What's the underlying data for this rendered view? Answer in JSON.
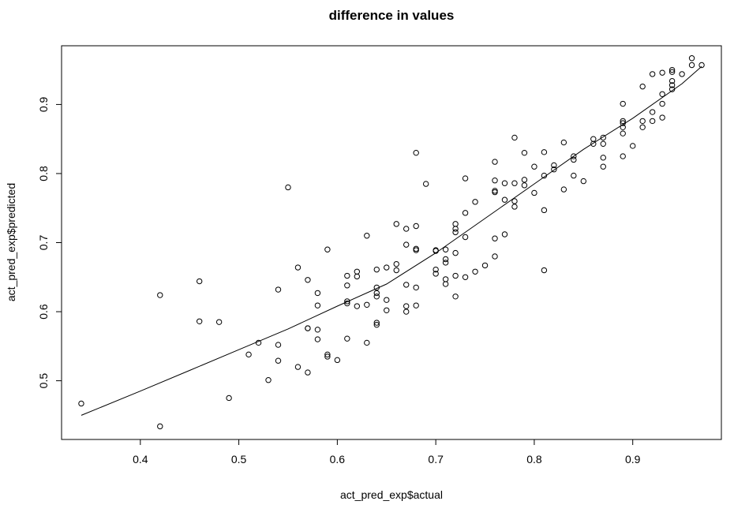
{
  "chart_data": {
    "type": "scatter",
    "title": "difference in values",
    "xlabel": "act_pred_exp$actual",
    "ylabel": "act_pred_exp$predicted",
    "xlim": [
      0.32,
      0.99
    ],
    "ylim": [
      0.415,
      0.985
    ],
    "x_ticks": [
      0.4,
      0.5,
      0.6,
      0.7,
      0.8,
      0.9
    ],
    "x_tick_labels": [
      "0.4",
      "0.5",
      "0.6",
      "0.7",
      "0.8",
      "0.9"
    ],
    "y_ticks": [
      0.5,
      0.6,
      0.7,
      0.8,
      0.9
    ],
    "y_tick_labels": [
      "0.5",
      "0.6",
      "0.7",
      "0.8",
      "0.9"
    ],
    "grid": false,
    "marker": "open-circle",
    "color": "#000000",
    "points": [
      [
        0.34,
        0.467
      ],
      [
        0.42,
        0.434
      ],
      [
        0.42,
        0.624
      ],
      [
        0.46,
        0.644
      ],
      [
        0.46,
        0.586
      ],
      [
        0.48,
        0.585
      ],
      [
        0.49,
        0.475
      ],
      [
        0.51,
        0.538
      ],
      [
        0.52,
        0.555
      ],
      [
        0.53,
        0.501
      ],
      [
        0.54,
        0.632
      ],
      [
        0.54,
        0.552
      ],
      [
        0.54,
        0.529
      ],
      [
        0.55,
        0.78
      ],
      [
        0.56,
        0.664
      ],
      [
        0.56,
        0.52
      ],
      [
        0.57,
        0.646
      ],
      [
        0.57,
        0.576
      ],
      [
        0.57,
        0.576
      ],
      [
        0.57,
        0.512
      ],
      [
        0.58,
        0.627
      ],
      [
        0.58,
        0.609
      ],
      [
        0.58,
        0.574
      ],
      [
        0.58,
        0.56
      ],
      [
        0.59,
        0.69
      ],
      [
        0.59,
        0.538
      ],
      [
        0.59,
        0.535
      ],
      [
        0.6,
        0.53
      ],
      [
        0.61,
        0.652
      ],
      [
        0.61,
        0.638
      ],
      [
        0.61,
        0.615
      ],
      [
        0.61,
        0.612
      ],
      [
        0.61,
        0.561
      ],
      [
        0.62,
        0.658
      ],
      [
        0.62,
        0.651
      ],
      [
        0.62,
        0.608
      ],
      [
        0.63,
        0.71
      ],
      [
        0.63,
        0.61
      ],
      [
        0.63,
        0.555
      ],
      [
        0.64,
        0.661
      ],
      [
        0.64,
        0.635
      ],
      [
        0.64,
        0.627
      ],
      [
        0.64,
        0.622
      ],
      [
        0.64,
        0.584
      ],
      [
        0.64,
        0.581
      ],
      [
        0.65,
        0.664
      ],
      [
        0.65,
        0.617
      ],
      [
        0.65,
        0.602
      ],
      [
        0.66,
        0.727
      ],
      [
        0.66,
        0.669
      ],
      [
        0.66,
        0.66
      ],
      [
        0.67,
        0.72
      ],
      [
        0.67,
        0.697
      ],
      [
        0.67,
        0.639
      ],
      [
        0.67,
        0.608
      ],
      [
        0.67,
        0.6
      ],
      [
        0.68,
        0.83
      ],
      [
        0.68,
        0.724
      ],
      [
        0.68,
        0.691
      ],
      [
        0.68,
        0.689
      ],
      [
        0.68,
        0.635
      ],
      [
        0.68,
        0.609
      ],
      [
        0.69,
        0.785
      ],
      [
        0.7,
        0.689
      ],
      [
        0.7,
        0.688
      ],
      [
        0.7,
        0.661
      ],
      [
        0.7,
        0.655
      ],
      [
        0.71,
        0.69
      ],
      [
        0.71,
        0.676
      ],
      [
        0.71,
        0.671
      ],
      [
        0.71,
        0.647
      ],
      [
        0.71,
        0.64
      ],
      [
        0.72,
        0.727
      ],
      [
        0.72,
        0.72
      ],
      [
        0.72,
        0.715
      ],
      [
        0.72,
        0.685
      ],
      [
        0.72,
        0.652
      ],
      [
        0.72,
        0.622
      ],
      [
        0.73,
        0.793
      ],
      [
        0.73,
        0.743
      ],
      [
        0.73,
        0.708
      ],
      [
        0.73,
        0.65
      ],
      [
        0.74,
        0.759
      ],
      [
        0.74,
        0.658
      ],
      [
        0.75,
        0.667
      ],
      [
        0.76,
        0.817
      ],
      [
        0.76,
        0.79
      ],
      [
        0.76,
        0.775
      ],
      [
        0.76,
        0.773
      ],
      [
        0.76,
        0.706
      ],
      [
        0.76,
        0.68
      ],
      [
        0.77,
        0.786
      ],
      [
        0.77,
        0.762
      ],
      [
        0.77,
        0.712
      ],
      [
        0.78,
        0.852
      ],
      [
        0.78,
        0.786
      ],
      [
        0.78,
        0.76
      ],
      [
        0.78,
        0.752
      ],
      [
        0.79,
        0.83
      ],
      [
        0.79,
        0.791
      ],
      [
        0.79,
        0.783
      ],
      [
        0.8,
        0.81
      ],
      [
        0.8,
        0.772
      ],
      [
        0.81,
        0.831
      ],
      [
        0.81,
        0.797
      ],
      [
        0.81,
        0.747
      ],
      [
        0.81,
        0.66
      ],
      [
        0.82,
        0.812
      ],
      [
        0.82,
        0.806
      ],
      [
        0.83,
        0.845
      ],
      [
        0.83,
        0.777
      ],
      [
        0.84,
        0.825
      ],
      [
        0.84,
        0.82
      ],
      [
        0.84,
        0.797
      ],
      [
        0.85,
        0.789
      ],
      [
        0.86,
        0.85
      ],
      [
        0.86,
        0.843
      ],
      [
        0.87,
        0.852
      ],
      [
        0.87,
        0.843
      ],
      [
        0.87,
        0.823
      ],
      [
        0.87,
        0.81
      ],
      [
        0.89,
        0.901
      ],
      [
        0.89,
        0.876
      ],
      [
        0.89,
        0.873
      ],
      [
        0.89,
        0.867
      ],
      [
        0.89,
        0.858
      ],
      [
        0.89,
        0.825
      ],
      [
        0.9,
        0.84
      ],
      [
        0.91,
        0.926
      ],
      [
        0.91,
        0.876
      ],
      [
        0.91,
        0.867
      ],
      [
        0.92,
        0.944
      ],
      [
        0.92,
        0.889
      ],
      [
        0.92,
        0.876
      ],
      [
        0.93,
        0.946
      ],
      [
        0.93,
        0.915
      ],
      [
        0.93,
        0.901
      ],
      [
        0.93,
        0.881
      ],
      [
        0.94,
        0.95
      ],
      [
        0.94,
        0.947
      ],
      [
        0.94,
        0.934
      ],
      [
        0.94,
        0.928
      ],
      [
        0.94,
        0.922
      ],
      [
        0.95,
        0.944
      ],
      [
        0.96,
        0.967
      ],
      [
        0.96,
        0.957
      ],
      [
        0.97,
        0.957
      ]
    ],
    "trend_line": {
      "x": [
        0.34,
        0.4,
        0.45,
        0.5,
        0.55,
        0.6,
        0.65,
        0.7,
        0.75,
        0.8,
        0.85,
        0.9,
        0.95,
        0.97
      ],
      "y": [
        0.45,
        0.485,
        0.515,
        0.545,
        0.575,
        0.608,
        0.64,
        0.685,
        0.735,
        0.785,
        0.835,
        0.88,
        0.93,
        0.955
      ]
    }
  }
}
